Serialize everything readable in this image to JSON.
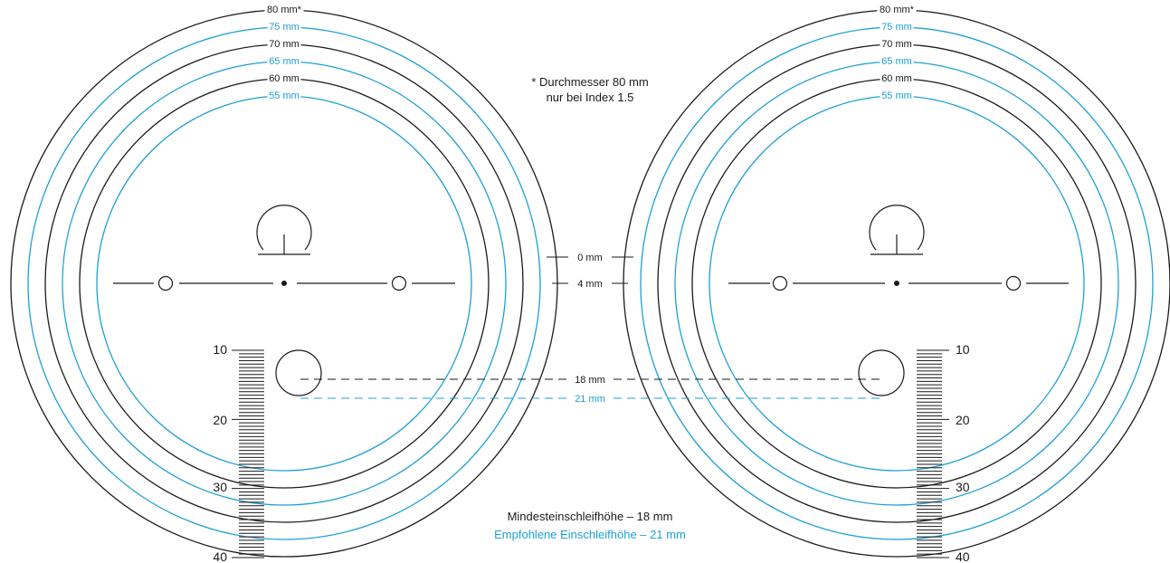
{
  "colors": {
    "black": "#1a1a1a",
    "blue": "#1e9fd4",
    "background": "#ffffff"
  },
  "rings": [
    {
      "label": "80 mm*",
      "color": "black"
    },
    {
      "label": "75 mm",
      "color": "blue"
    },
    {
      "label": "70 mm",
      "color": "black"
    },
    {
      "label": "65 mm",
      "color": "blue"
    },
    {
      "label": "60 mm",
      "color": "black"
    },
    {
      "label": "55 mm",
      "color": "blue"
    }
  ],
  "footnote": {
    "line1": "* Durchmesser 80 mm",
    "line2": "nur bei Index 1.5"
  },
  "center_markers": {
    "zero": "0 mm",
    "four": "4 mm"
  },
  "height_lines": {
    "min": "18 mm",
    "recommended": "21 mm"
  },
  "scale": {
    "labels": [
      "10",
      "20",
      "30",
      "40"
    ]
  },
  "legend": {
    "min_height": "Mindesteinschleifhöhe – 18 mm",
    "recommended_height": "Empfohlene Einschleifhöhe – 21 mm"
  },
  "icons": [
    "centration-lens-outline",
    "ruler-scale"
  ]
}
